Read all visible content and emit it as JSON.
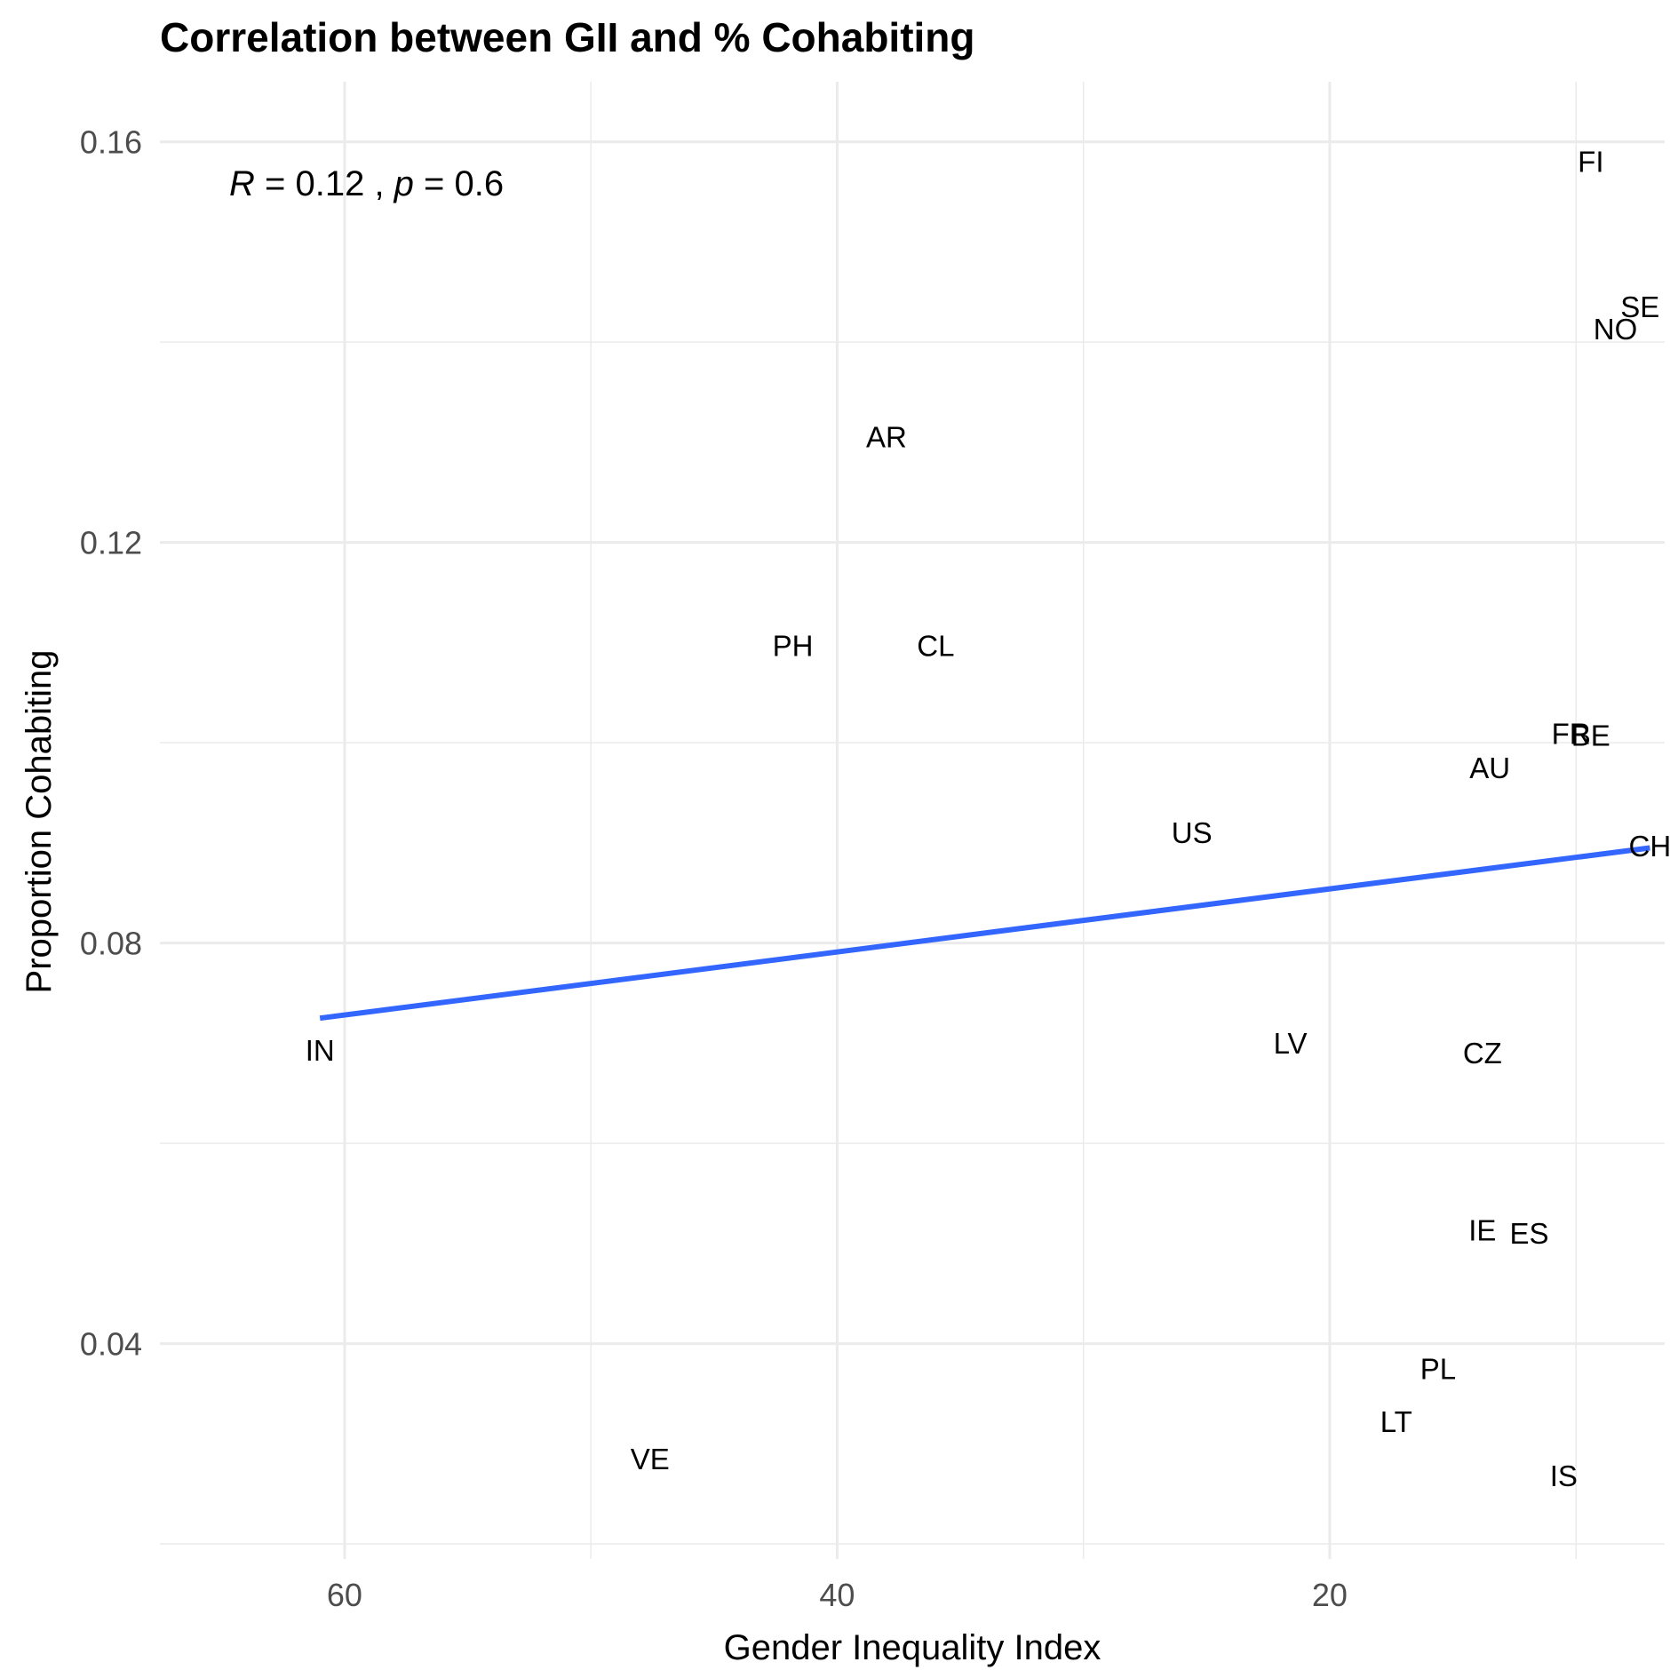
{
  "chart_data": {
    "type": "scatter",
    "title": "Correlation between GII and % Cohabiting",
    "xlabel": "Gender Inequality Index",
    "ylabel": "Proportion Cohabiting",
    "x_reversed": true,
    "xlim": [
      67.5,
      6.4
    ],
    "ylim": [
      0.0185,
      0.166
    ],
    "x_ticks": [
      60,
      40,
      20
    ],
    "x_tick_labels": [
      "60",
      "40",
      "20"
    ],
    "y_ticks": [
      0.04,
      0.08,
      0.12,
      0.16
    ],
    "y_tick_labels": [
      "0.04",
      "0.08",
      "0.12",
      "0.16"
    ],
    "grid": true,
    "annotation": {
      "r_label": "R",
      "r_text": " = 0.12 , ",
      "p_label": "p",
      "p_text": " = 0.6"
    },
    "points": [
      {
        "label": "FI",
        "x": 9.4,
        "y": 0.158
      },
      {
        "label": "SE",
        "x": 7.4,
        "y": 0.1435
      },
      {
        "label": "NO",
        "x": 8.4,
        "y": 0.1413
      },
      {
        "label": "AR",
        "x": 38.0,
        "y": 0.1305
      },
      {
        "label": "PH",
        "x": 41.8,
        "y": 0.1097
      },
      {
        "label": "CL",
        "x": 36.0,
        "y": 0.1097
      },
      {
        "label": "FR",
        "x": 10.2,
        "y": 0.1009
      },
      {
        "label": "BE",
        "x": 9.4,
        "y": 0.1007
      },
      {
        "label": "AU",
        "x": 13.5,
        "y": 0.0975
      },
      {
        "label": "US",
        "x": 25.6,
        "y": 0.091
      },
      {
        "label": "CH",
        "x": 7.0,
        "y": 0.0897
      },
      {
        "label": "IN",
        "x": 61.0,
        "y": 0.0693
      },
      {
        "label": "LV",
        "x": 21.6,
        "y": 0.07
      },
      {
        "label": "CZ",
        "x": 13.8,
        "y": 0.069
      },
      {
        "label": "IE",
        "x": 13.8,
        "y": 0.0513
      },
      {
        "label": "ES",
        "x": 11.9,
        "y": 0.051
      },
      {
        "label": "PL",
        "x": 15.6,
        "y": 0.0375
      },
      {
        "label": "LT",
        "x": 17.3,
        "y": 0.0322
      },
      {
        "label": "VE",
        "x": 47.6,
        "y": 0.0285
      },
      {
        "label": "IS",
        "x": 10.5,
        "y": 0.0268
      }
    ],
    "series": [
      {
        "type": "line",
        "x": [
          61.0,
          7.0
        ],
        "y": [
          0.0725,
          0.0895
        ],
        "color": "#3366ff"
      }
    ]
  }
}
